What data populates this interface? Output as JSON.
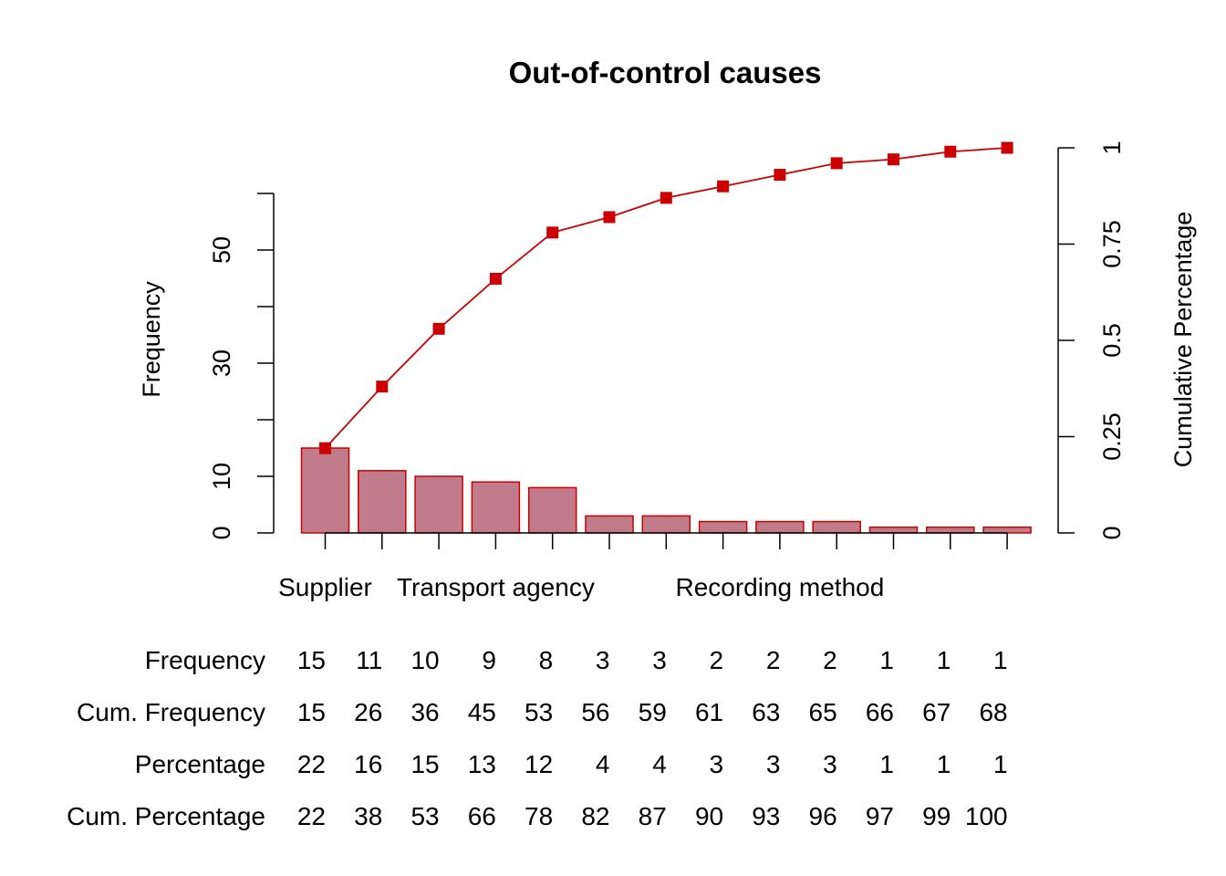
{
  "chart_data": {
    "type": "bar",
    "title": "Out-of-control causes",
    "ylabel": "Frequency",
    "y2label": "Cumulative Percentage",
    "ylim": [
      0,
      60
    ],
    "y2lim": [
      0,
      1
    ],
    "yticks": [
      0,
      10,
      30,
      50
    ],
    "yticks_unlabeled": [
      20,
      40,
      60
    ],
    "y2ticks": [
      "0",
      "0.25",
      "0.5",
      "0.75",
      "1"
    ],
    "categories": [
      "Supplier",
      "",
      "",
      "Transport agency",
      "",
      "",
      "",
      "",
      "Recording method",
      "",
      "",
      "",
      ""
    ],
    "series": [
      {
        "name": "Frequency",
        "type": "bar",
        "values": [
          15,
          11,
          10,
          9,
          8,
          3,
          3,
          2,
          2,
          2,
          1,
          1,
          1
        ]
      },
      {
        "name": "Cum. Percentage",
        "type": "line",
        "axis": "right",
        "values": [
          0.22,
          0.38,
          0.53,
          0.66,
          0.78,
          0.82,
          0.87,
          0.9,
          0.93,
          0.96,
          0.97,
          0.99,
          1.0
        ]
      }
    ],
    "colors": {
      "bar_fill": "#c27b8a",
      "bar_stroke": "#cc0000",
      "line": "#cc0000"
    },
    "legend": "none",
    "grid": false
  },
  "table": {
    "rows": [
      {
        "label": "Frequency",
        "values": [
          "15",
          "11",
          "10",
          "9",
          "8",
          "3",
          "3",
          "2",
          "2",
          "2",
          "1",
          "1",
          "1"
        ]
      },
      {
        "label": "Cum. Frequency",
        "values": [
          "15",
          "26",
          "36",
          "45",
          "53",
          "56",
          "59",
          "61",
          "63",
          "65",
          "66",
          "67",
          "68"
        ]
      },
      {
        "label": "Percentage",
        "values": [
          "22",
          "16",
          "15",
          "13",
          "12",
          "4",
          "4",
          "3",
          "3",
          "3",
          "1",
          "1",
          "1"
        ]
      },
      {
        "label": "Cum. Percentage",
        "values": [
          "22",
          "38",
          "53",
          "66",
          "78",
          "82",
          "87",
          "90",
          "93",
          "96",
          "97",
          "99",
          "100"
        ]
      }
    ]
  }
}
